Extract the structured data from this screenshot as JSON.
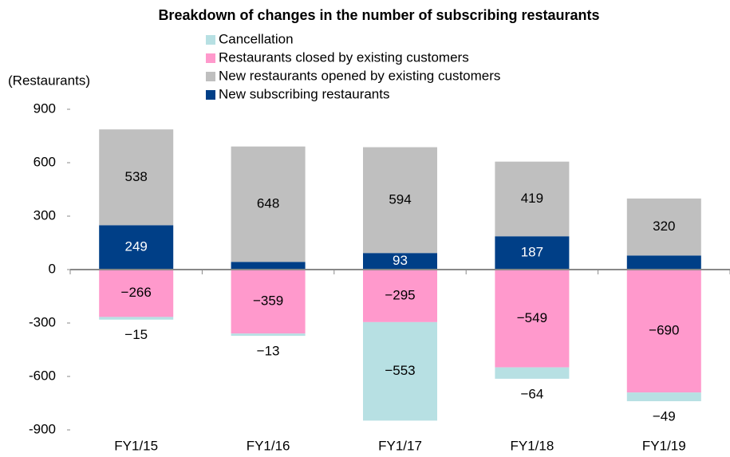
{
  "chart_data": {
    "type": "stacked_bar",
    "title": "Breakdown of changes in the number of subscribing restaurants",
    "y_axis_label": "(Restaurants)",
    "categories": [
      "FY1/15",
      "FY1/16",
      "FY1/17",
      "FY1/18",
      "FY1/19"
    ],
    "series": [
      {
        "name": "Cancellation",
        "color": "#b7e0e3",
        "values": [
          -15,
          -13,
          -553,
          -64,
          -49
        ],
        "value_labels": [
          "−15",
          "−13",
          "−553",
          "−64",
          "−49"
        ]
      },
      {
        "name": "Restaurants closed by existing customers",
        "color": "#ff99cc",
        "values": [
          -266,
          -359,
          -295,
          -549,
          -690
        ],
        "value_labels": [
          "−266",
          "−359",
          "−295",
          "−549",
          "−690"
        ]
      },
      {
        "name": "New restaurants opened by existing customers",
        "color": "#bfbfbf",
        "values": [
          538,
          648,
          594,
          419,
          320
        ]
      },
      {
        "name": "New subscribing restaurants",
        "color": "#003f87",
        "values": [
          249,
          43,
          93,
          187,
          79
        ]
      }
    ],
    "ylim": [
      -900,
      900
    ],
    "yticks": [
      -900,
      -600,
      -300,
      0,
      300,
      600,
      900
    ],
    "grid": false
  }
}
